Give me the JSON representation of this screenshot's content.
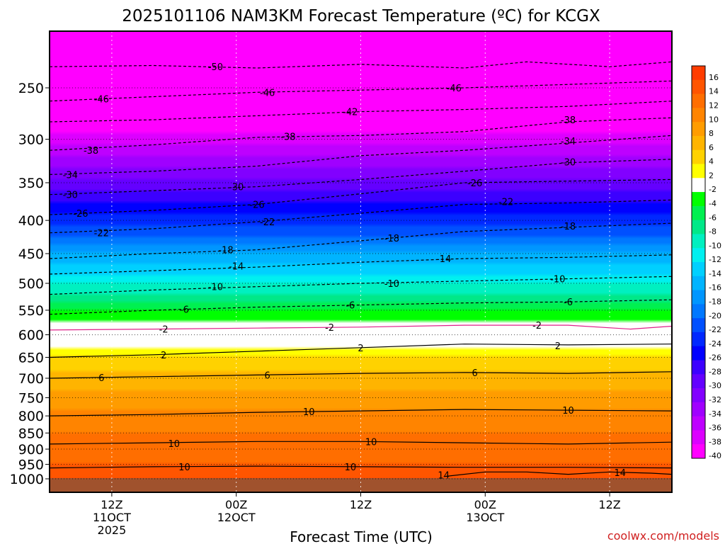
{
  "chart_data": {
    "type": "heatmap",
    "title": "2025101106 NAM3KM Forecast Temperature (ºC) for KCGX",
    "xlabel": "Forecast Time (UTC)",
    "ylabel": "",
    "credit": "coolwx.com/models",
    "xlim": [
      0,
      60
    ],
    "ylim": [
      1000,
      200
    ],
    "y_ticks": [
      250,
      300,
      350,
      400,
      450,
      500,
      550,
      600,
      650,
      700,
      750,
      800,
      850,
      900,
      950,
      1000
    ],
    "y_tick_labels": [
      "250",
      "300",
      "350",
      "400",
      "450",
      "500",
      "550",
      "600",
      "650",
      "700",
      "750",
      "800",
      "850",
      "900",
      "950",
      "1000"
    ],
    "x_ticks": [
      {
        "hour": 6,
        "line1": "12Z",
        "line2": "11OCT",
        "line3": "2025"
      },
      {
        "hour": 18,
        "line1": "00Z",
        "line2": "12OCT",
        "line3": ""
      },
      {
        "hour": 30,
        "line1": "12Z",
        "line2": "",
        "line3": ""
      },
      {
        "hour": 42,
        "line1": "00Z",
        "line2": "13OCT",
        "line3": ""
      },
      {
        "hour": 54,
        "line1": "12Z",
        "line2": "",
        "line3": ""
      }
    ],
    "colorbar": {
      "labels": [
        "16",
        "14",
        "12",
        "10",
        "8",
        "6",
        "4",
        "2",
        "-2",
        "-4",
        "-6",
        "-8",
        "-10",
        "-12",
        "-14",
        "-16",
        "-18",
        "-20",
        "-22",
        "-24",
        "-26",
        "-28",
        "-30",
        "-32",
        "-34",
        "-36",
        "-38",
        "-40"
      ],
      "colors": [
        "#ff3c00",
        "#ff5500",
        "#ff6e00",
        "#ff8400",
        "#ff9c00",
        "#ffb400",
        "#ffd200",
        "#ffff00",
        "#ffffff",
        "#00ff00",
        "#00f050",
        "#00e888",
        "#00f0c0",
        "#00f0f0",
        "#00d0ff",
        "#00b4ff",
        "#0096ff",
        "#0078ff",
        "#0050ff",
        "#0028ff",
        "#0000ff",
        "#3c00ff",
        "#6400ff",
        "#8200ff",
        "#a000ff",
        "#be00ff",
        "#dc00ff",
        "#ff00ff"
      ]
    },
    "temperature_profile": [
      {
        "p": 200,
        "t": -56
      },
      {
        "p": 230,
        "t": -50
      },
      {
        "p": 250,
        "t": -47
      },
      {
        "p": 280,
        "t": -41
      },
      {
        "p": 300,
        "t": -38
      },
      {
        "p": 340,
        "t": -32
      },
      {
        "p": 360,
        "t": -29
      },
      {
        "p": 400,
        "t": -24
      },
      {
        "p": 430,
        "t": -20
      },
      {
        "p": 450,
        "t": -17
      },
      {
        "p": 500,
        "t": -11
      },
      {
        "p": 550,
        "t": -5
      },
      {
        "p": 585,
        "t": -2
      },
      {
        "p": 600,
        "t": 0
      },
      {
        "p": 630,
        "t": 2
      },
      {
        "p": 660,
        "t": 4
      },
      {
        "p": 700,
        "t": 6
      },
      {
        "p": 780,
        "t": 9
      },
      {
        "p": 850,
        "t": 11
      },
      {
        "p": 930,
        "t": 12
      },
      {
        "p": 1000,
        "t": 15
      }
    ],
    "contours": [
      {
        "label": "-50",
        "points": [
          [
            0,
            232
          ],
          [
            10,
            231
          ],
          [
            20,
            233
          ],
          [
            30,
            230
          ],
          [
            40,
            233
          ],
          [
            46,
            228
          ],
          [
            54,
            232
          ],
          [
            60,
            228
          ]
        ],
        "label_at": [
          [
            16,
            232
          ]
        ]
      },
      {
        "label": "-46",
        "points": [
          [
            0,
            262
          ],
          [
            10,
            258
          ],
          [
            20,
            254
          ],
          [
            30,
            252
          ],
          [
            40,
            250
          ],
          [
            50,
            247
          ],
          [
            60,
            244
          ]
        ],
        "label_at": [
          [
            5,
            260
          ],
          [
            21,
            254
          ],
          [
            39,
            250
          ]
        ]
      },
      {
        "label": "-42",
        "points": [
          [
            0,
            282
          ],
          [
            10,
            280
          ],
          [
            20,
            276
          ],
          [
            30,
            272
          ],
          [
            40,
            270
          ],
          [
            50,
            267
          ],
          [
            60,
            262
          ]
        ],
        "label_at": [
          [
            29,
            272
          ]
        ]
      },
      {
        "label": "-38",
        "points": [
          [
            0,
            312
          ],
          [
            10,
            306
          ],
          [
            20,
            298
          ],
          [
            30,
            296
          ],
          [
            40,
            292
          ],
          [
            50,
            282
          ],
          [
            60,
            278
          ]
        ],
        "label_at": [
          [
            4,
            312
          ],
          [
            23,
            297
          ],
          [
            50,
            280
          ]
        ]
      },
      {
        "label": "-34",
        "points": [
          [
            0,
            340
          ],
          [
            10,
            336
          ],
          [
            20,
            330
          ],
          [
            30,
            318
          ],
          [
            40,
            312
          ],
          [
            50,
            304
          ],
          [
            60,
            296
          ]
        ],
        "label_at": [
          [
            2,
            340
          ],
          [
            50,
            302
          ]
        ]
      },
      {
        "label": "-30",
        "points": [
          [
            0,
            365
          ],
          [
            10,
            360
          ],
          [
            20,
            355
          ],
          [
            30,
            346
          ],
          [
            40,
            336
          ],
          [
            50,
            326
          ],
          [
            60,
            322
          ]
        ],
        "label_at": [
          [
            2,
            365
          ],
          [
            18,
            355
          ],
          [
            50,
            325
          ]
        ]
      },
      {
        "label": "-26",
        "points": [
          [
            0,
            392
          ],
          [
            10,
            386
          ],
          [
            20,
            378
          ],
          [
            30,
            364
          ],
          [
            40,
            350
          ],
          [
            50,
            348
          ],
          [
            60,
            346
          ]
        ],
        "label_at": [
          [
            3,
            390
          ],
          [
            20,
            378
          ],
          [
            41,
            350
          ]
        ]
      },
      {
        "label": "-22",
        "points": [
          [
            0,
            418
          ],
          [
            10,
            412
          ],
          [
            20,
            402
          ],
          [
            30,
            390
          ],
          [
            40,
            378
          ],
          [
            50,
            376
          ],
          [
            60,
            372
          ]
        ],
        "label_at": [
          [
            5,
            418
          ],
          [
            21,
            402
          ],
          [
            44,
            374
          ]
        ]
      },
      {
        "label": "-18",
        "points": [
          [
            0,
            458
          ],
          [
            10,
            450
          ],
          [
            20,
            444
          ],
          [
            30,
            430
          ],
          [
            40,
            416
          ],
          [
            50,
            410
          ],
          [
            60,
            404
          ]
        ],
        "label_at": [
          [
            17,
            444
          ],
          [
            33,
            426
          ],
          [
            50,
            408
          ]
        ]
      },
      {
        "label": "-14",
        "points": [
          [
            0,
            484
          ],
          [
            10,
            478
          ],
          [
            20,
            472
          ],
          [
            30,
            464
          ],
          [
            40,
            458
          ],
          [
            50,
            456
          ],
          [
            60,
            452
          ]
        ],
        "label_at": [
          [
            18,
            470
          ],
          [
            38,
            458
          ]
        ]
      },
      {
        "label": "-10",
        "points": [
          [
            0,
            520
          ],
          [
            10,
            512
          ],
          [
            20,
            506
          ],
          [
            30,
            500
          ],
          [
            40,
            496
          ],
          [
            50,
            492
          ],
          [
            60,
            488
          ]
        ],
        "label_at": [
          [
            16,
            506
          ],
          [
            33,
            500
          ],
          [
            49,
            492
          ]
        ]
      },
      {
        "label": "-6",
        "points": [
          [
            0,
            558
          ],
          [
            10,
            550
          ],
          [
            20,
            544
          ],
          [
            30,
            540
          ],
          [
            40,
            536
          ],
          [
            50,
            534
          ],
          [
            60,
            530
          ]
        ],
        "label_at": [
          [
            13,
            548
          ],
          [
            29,
            540
          ],
          [
            50,
            534
          ]
        ]
      },
      {
        "label": "-2",
        "points": [
          [
            0,
            590
          ],
          [
            10,
            588
          ],
          [
            20,
            586
          ],
          [
            30,
            584
          ],
          [
            40,
            580
          ],
          [
            50,
            580
          ],
          [
            56,
            588
          ],
          [
            60,
            582
          ]
        ],
        "label_at": [
          [
            11,
            588
          ],
          [
            27,
            584
          ],
          [
            47,
            580
          ]
        ]
      },
      {
        "label": "2",
        "points": [
          [
            0,
            650
          ],
          [
            10,
            644
          ],
          [
            20,
            636
          ],
          [
            30,
            628
          ],
          [
            40,
            620
          ],
          [
            50,
            622
          ],
          [
            60,
            620
          ]
        ],
        "label_at": [
          [
            11,
            644
          ],
          [
            30,
            628
          ],
          [
            49,
            624
          ]
        ]
      },
      {
        "label": "6",
        "points": [
          [
            0,
            700
          ],
          [
            10,
            696
          ],
          [
            20,
            692
          ],
          [
            30,
            688
          ],
          [
            40,
            686
          ],
          [
            50,
            688
          ],
          [
            60,
            684
          ]
        ],
        "label_at": [
          [
            5,
            698
          ],
          [
            21,
            692
          ],
          [
            41,
            686
          ]
        ]
      },
      {
        "label": "10",
        "points": [
          [
            0,
            800
          ],
          [
            10,
            796
          ],
          [
            20,
            790
          ],
          [
            30,
            786
          ],
          [
            40,
            782
          ],
          [
            50,
            784
          ],
          [
            60,
            786
          ]
        ],
        "label_at": [
          [
            25,
            788
          ],
          [
            50,
            784
          ]
        ]
      },
      {
        "label": "10",
        "points": [
          [
            0,
            884
          ],
          [
            10,
            880
          ],
          [
            20,
            876
          ],
          [
            30,
            876
          ],
          [
            40,
            880
          ],
          [
            50,
            884
          ],
          [
            60,
            878
          ]
        ],
        "label_at": [
          [
            12,
            882
          ],
          [
            31,
            876
          ]
        ]
      },
      {
        "label": "10",
        "points": [
          [
            0,
            962
          ],
          [
            10,
            958
          ],
          [
            20,
            956
          ],
          [
            30,
            958
          ],
          [
            40,
            960
          ],
          [
            50,
            960
          ],
          [
            60,
            962
          ]
        ],
        "label_at": [
          [
            13,
            958
          ],
          [
            29,
            958
          ]
        ]
      },
      {
        "label": "14",
        "points": [
          [
            38,
            992
          ],
          [
            42,
            976
          ],
          [
            46,
            976
          ],
          [
            50,
            984
          ],
          [
            54,
            976
          ],
          [
            58,
            980
          ],
          [
            60,
            984
          ]
        ],
        "label_at": [
          [
            38,
            986
          ],
          [
            55,
            978
          ]
        ]
      }
    ]
  }
}
